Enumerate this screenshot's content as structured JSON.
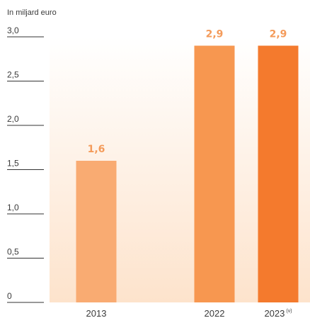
{
  "chart_data": {
    "type": "bar",
    "ylabel": "In miljard euro",
    "categories": [
      "2013",
      "2022",
      "2023"
    ],
    "category_superscripts": [
      "",
      "",
      "(v)"
    ],
    "values": [
      1.6,
      2.9,
      2.9
    ],
    "data_labels": [
      "1,6",
      "2,9",
      "2,9"
    ],
    "yticks": [
      3.0,
      2.5,
      2.0,
      1.5,
      1.0,
      0.5,
      0
    ],
    "ytick_labels": [
      "3,0",
      "2,5",
      "2,0",
      "1,5",
      "1,0",
      "0,5",
      "0"
    ],
    "ylim": [
      0,
      3.0
    ],
    "grid": false,
    "colors": {
      "bars": [
        "#f9ab72",
        "#f79750",
        "#f47a2d"
      ],
      "data_labels": "#f49b5a",
      "background_gradient_top": "#ffffff",
      "background_gradient_bottom": "#fde3cc",
      "tick_lines": "#333333",
      "text": "#3a3a3a"
    }
  }
}
